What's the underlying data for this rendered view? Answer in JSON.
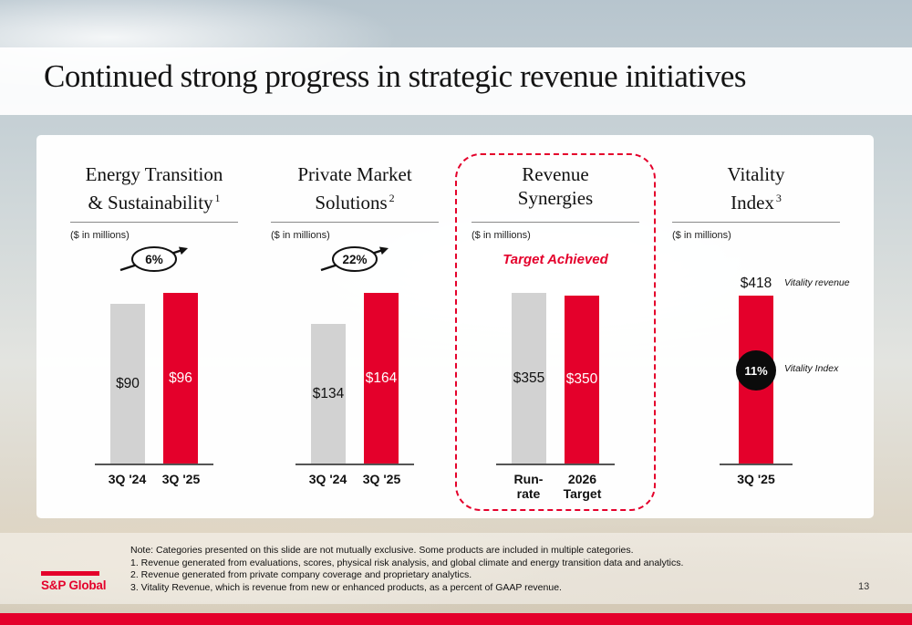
{
  "slide": {
    "title": "Continued strong progress in strategic revenue initiatives",
    "page_number": "13",
    "logo_text": "S&P Global"
  },
  "colors": {
    "accent_red": "#E4002B",
    "bar_gray": "#D2D2D2",
    "circle_black": "#0B0B0B"
  },
  "icons": {
    "growth_arrow": "arrow-up-right-through-ellipse",
    "vitality_marker": "filled-black-circle"
  },
  "chart_data": [
    {
      "type": "bar",
      "title_line1": "Energy Transition",
      "title_line2": "& Sustainability",
      "footnote_ref": "1",
      "unit": "($ in millions)",
      "growth_badge": "6%",
      "ymax": 96,
      "categories": [
        "3Q '24",
        "3Q '25"
      ],
      "series": [
        {
          "category": "3Q '24",
          "value": 90,
          "display": "$90",
          "color": "gray"
        },
        {
          "category": "3Q '25",
          "value": 96,
          "display": "$96",
          "color": "red"
        }
      ]
    },
    {
      "type": "bar",
      "title_line1": "Private Market",
      "title_line2": "Solutions",
      "footnote_ref": "2",
      "unit": "($ in millions)",
      "growth_badge": "22%",
      "ymax": 164,
      "categories": [
        "3Q '24",
        "3Q '25"
      ],
      "series": [
        {
          "category": "3Q '24",
          "value": 134,
          "display": "$134",
          "color": "gray"
        },
        {
          "category": "3Q '25",
          "value": 164,
          "display": "$164",
          "color": "red"
        }
      ]
    },
    {
      "type": "bar",
      "title_line1": "Revenue",
      "title_line2": "Synergies",
      "unit": "($ in millions)",
      "status_label": "Target Achieved",
      "highlighted": true,
      "ymax": 355,
      "categories": [
        "Run-rate",
        "2026 Target"
      ],
      "categories_lines": [
        [
          "Run-",
          "rate"
        ],
        [
          "2026",
          "Target"
        ]
      ],
      "series": [
        {
          "category": "Run-rate",
          "value": 355,
          "display": "$355",
          "color": "gray"
        },
        {
          "category": "2026 Target",
          "value": 350,
          "display": "$350",
          "color": "red"
        }
      ]
    },
    {
      "type": "bar",
      "title_line1": "Vitality",
      "title_line2": "Index",
      "footnote_ref": "3",
      "unit": "($ in millions)",
      "ymax": 418,
      "categories": [
        "3Q '25"
      ],
      "series": [
        {
          "category": "3Q '25",
          "value": 418,
          "display": "$418",
          "color": "red"
        }
      ],
      "annotations": {
        "revenue_label": "Vitality revenue",
        "index_label": "Vitality Index",
        "index_value": "11%"
      }
    }
  ],
  "notes": [
    "Note:  Categories presented on this slide are not mutually exclusive. Some products are included in multiple categories.",
    "1. Revenue generated from evaluations, scores, physical risk analysis, and global climate and energy transition data and analytics.",
    "2. Revenue generated from private company coverage and proprietary analytics.",
    "3. Vitality Revenue, which is revenue from new or enhanced products, as a percent of GAAP revenue."
  ]
}
